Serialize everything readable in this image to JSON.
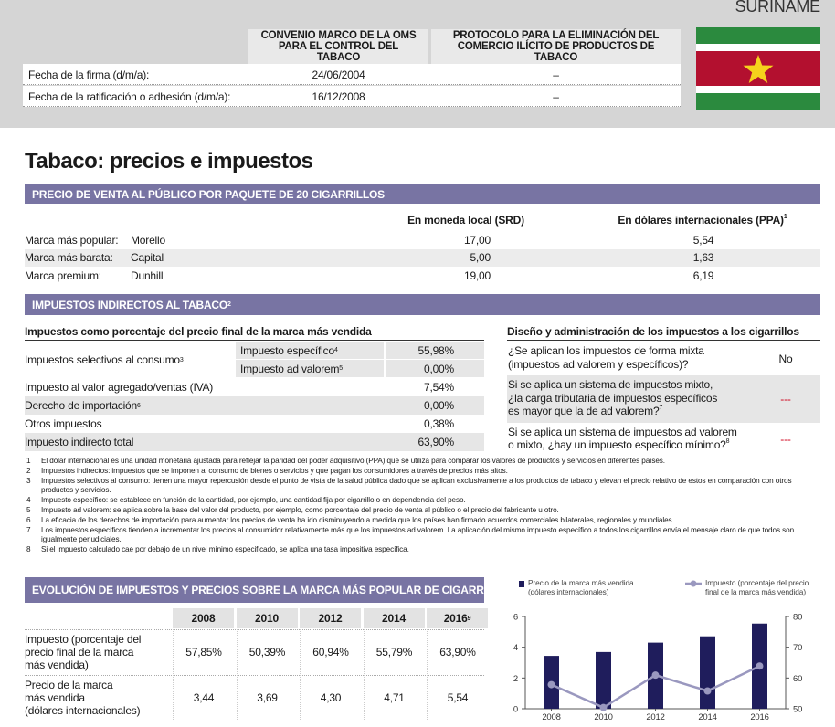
{
  "header": {
    "country": "SURINAME",
    "col1": "CONVENIO MARCO DE LA OMS PARA EL CONTROL DEL TABACO",
    "col2": "PROTOCOLO PARA LA ELIMINACIÓN DEL COMERCIO ILÍCITO DE PRODUCTOS DE TABACO",
    "rows": [
      [
        "Fecha de la firma (d/m/a):",
        "24/06/2004",
        "–"
      ],
      [
        "Fecha de la ratificación o adhesión (d/m/a):",
        "16/12/2008",
        "–"
      ]
    ]
  },
  "title": "Tabaco: precios e impuestos",
  "price": {
    "heading": "PRECIO DE VENTA AL PÚBLICO POR PAQUETE DE 20 CIGARRILLOS",
    "col_local": "En moneda local  (SRD)",
    "col_ppa": "En dólares internacionales (PPA)",
    "col_ppa_note": "1",
    "rows": [
      {
        "label": "Marca más popular:",
        "brand": "Morello",
        "local": "17,00",
        "ppa": "5,54"
      },
      {
        "label": "Marca más barata:",
        "brand": "Capital",
        "local": "5,00",
        "ppa": "1,63"
      },
      {
        "label": "Marca premium:",
        "brand": "Dunhill",
        "local": "19,00",
        "ppa": "6,19"
      }
    ]
  },
  "taxes": {
    "heading": "IMPUESTOS INDIRECTOS AL TABACO",
    "heading_note": "2",
    "subheading": "Impuestos como porcentaje del precio final de la marca más vendida",
    "excise": {
      "label": "Impuestos selectivos al consumo",
      "note": "3",
      "rows": [
        {
          "label": "Impuesto específico",
          "note": "4",
          "value": "55,98%"
        },
        {
          "label": "Impuesto ad valorem",
          "note": "5",
          "value": "0,00%"
        }
      ]
    },
    "rows": [
      {
        "label": "Impuesto al valor agregado/ventas (IVA)",
        "value": "7,54%"
      },
      {
        "label": "Derecho de importación",
        "note": "6",
        "value": "0,00%"
      },
      {
        "label": "Otros impuestos",
        "value": "0,38%"
      },
      {
        "label": "Impuesto indirecto total",
        "value": "63,90%"
      }
    ]
  },
  "design": {
    "heading": "Diseño y administración de los impuestos a los cigarrillos",
    "rows": [
      {
        "lines": [
          "¿Se aplican los impuestos de forma mixta",
          "(impuestos ad valorem y específicos)?"
        ],
        "answer": "No"
      },
      {
        "lines": [
          "Si se aplica un sistema de impuestos mixto,",
          "¿la carga tributaria de impuestos específicos",
          "es mayor que la de ad valorem?"
        ],
        "note": "7",
        "answer": "---"
      },
      {
        "lines": [
          "Si se aplica un sistema de impuestos ad valorem",
          "o mixto, ¿hay un impuesto específico mínimo?"
        ],
        "note": "8",
        "answer": "---"
      }
    ]
  },
  "footnotes": [
    {
      "n": "1",
      "text": "El dólar internacional es una unidad monetaria ajustada para reflejar la paridad del poder adquisitivo (PPA) que se utiliza para comparar los valores de productos y servicios en diferentes países."
    },
    {
      "n": "2",
      "text": "Impuestos indirectos: impuestos que se imponen al consumo de bienes o servicios y que pagan los consumidores a través de precios más altos."
    },
    {
      "n": "3",
      "text": "Impuestos selectivos al consumo: tienen una mayor repercusión desde el punto de vista de la salud pública dado que se aplican exclusivamente a los productos de tabaco y elevan el precio relativo de estos en comparación con otros productos y servicios."
    },
    {
      "n": "4",
      "text": "Impuesto específico: se establece en función de la cantidad, por ejemplo, una cantidad fija por cigarrillo o en dependencia del peso."
    },
    {
      "n": "5",
      "text": "Impuesto ad valorem: se aplica sobre la base del valor del producto, por ejemplo, como porcentaje del precio de venta al público o el precio del fabricante u otro."
    },
    {
      "n": "6",
      "text": "La eficacia de los derechos de importación para aumentar los precios de venta ha ido disminuyendo a medida que los países han firmado acuerdos comerciales bilaterales, regionales y mundiales."
    },
    {
      "n": "7",
      "text": "Los impuestos específicos tienden a incrementar los precios al consumidor relativamente más que los impuestos ad valorem. La aplicación del mismo impuesto específico a todos los cigarrillos envía el mensaje claro de que todos son igualmente perjudiciales."
    },
    {
      "n": "8",
      "text": "Si el impuesto calculado cae por debajo de un nivel mínimo especificado, se aplica una tasa impositiva específica."
    }
  ],
  "evolution": {
    "heading": "EVOLUCIÓN DE IMPUESTOS Y PRECIOS SOBRE LA MARCA MÁS POPULAR DE CIGARRILLOS",
    "years": [
      {
        "label": "2008"
      },
      {
        "label": "2010"
      },
      {
        "label": "2012"
      },
      {
        "label": "2014"
      },
      {
        "label": "2016",
        "note": "9"
      }
    ],
    "rows": [
      {
        "lines": [
          "Impuesto (porcentaje del",
          "precio final de la marca",
          "más vendida)"
        ],
        "values": [
          "57,85%",
          "50,39%",
          "60,94%",
          "55,79%",
          "63,90%"
        ]
      },
      {
        "lines": [
          "Precio de la marca",
          "más vendida",
          "(dólares internacionales)"
        ],
        "values": [
          "3,44",
          "3,69",
          "4,30",
          "4,71",
          "5,54"
        ]
      }
    ]
  },
  "chart_data": {
    "type": "bar_line",
    "categories": [
      "2008",
      "2010",
      "2012",
      "2014",
      "2016"
    ],
    "series": [
      {
        "name": "Precio de la marca más vendida (dólares internacionales)",
        "type": "bar",
        "color": "#1f1d5c",
        "values": [
          3.44,
          3.69,
          4.3,
          4.71,
          5.54
        ]
      },
      {
        "name": "Impuesto (porcentaje del precio final de la marca más vendida)",
        "type": "line",
        "axis": "y2",
        "color": "#9a98bf",
        "values": [
          57.85,
          50.39,
          60.94,
          55.79,
          63.9
        ]
      }
    ],
    "ylim": [
      0,
      6
    ],
    "yticks": [
      0,
      2,
      4,
      6
    ],
    "y2lim": [
      50,
      80
    ],
    "y2ticks": [
      50,
      60,
      70,
      80
    ]
  }
}
